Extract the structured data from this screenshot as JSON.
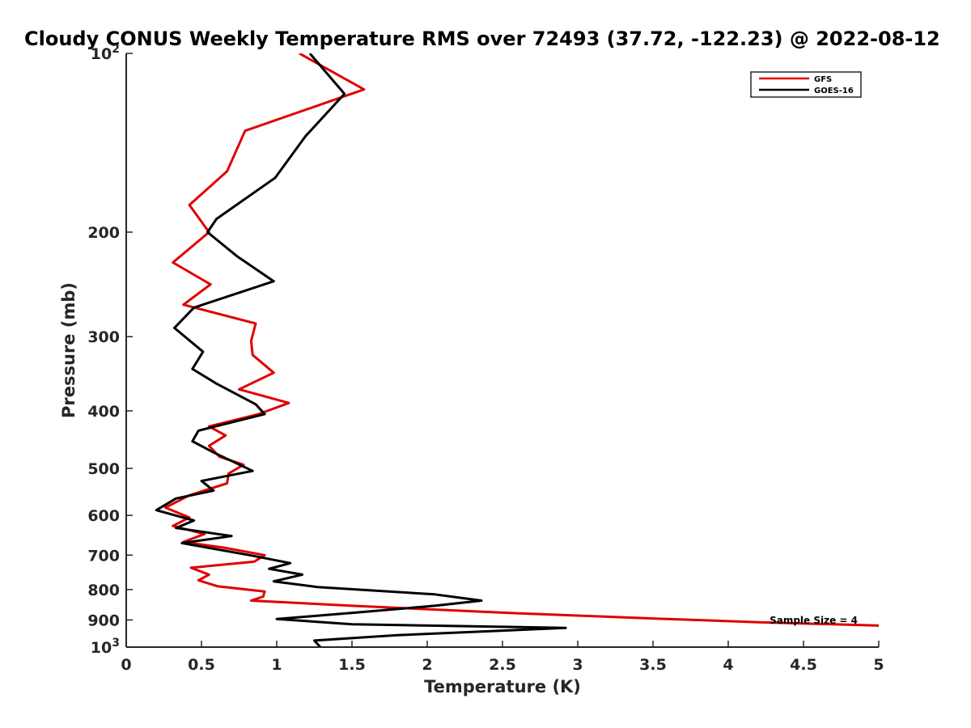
{
  "chart_data": {
    "type": "line",
    "title": "Cloudy CONUS Weekly Temperature RMS over 72493 (37.72, -122.23) @ 2022-08-12",
    "xlabel": "Temperature (K)",
    "ylabel": "Pressure (mb)",
    "xlim": [
      0,
      5
    ],
    "ylim": [
      100,
      1000
    ],
    "y_scale": "log",
    "y_reversed": true,
    "grid": false,
    "legend_placement": "top-right",
    "x_ticks": [
      {
        "value": 0,
        "label": "0"
      },
      {
        "value": 0.5,
        "label": "0.5"
      },
      {
        "value": 1,
        "label": "1"
      },
      {
        "value": 1.5,
        "label": "1.5"
      },
      {
        "value": 2,
        "label": "2"
      },
      {
        "value": 2.5,
        "label": "2.5"
      },
      {
        "value": 3,
        "label": "3"
      },
      {
        "value": 3.5,
        "label": "3.5"
      },
      {
        "value": 4,
        "label": "4"
      },
      {
        "value": 4.5,
        "label": "4.5"
      },
      {
        "value": 5,
        "label": "5"
      }
    ],
    "y_ticks": [
      {
        "value": 100,
        "base": "10",
        "exp": "2"
      },
      {
        "value": 200,
        "label": "200"
      },
      {
        "value": 300,
        "label": "300"
      },
      {
        "value": 400,
        "label": "400"
      },
      {
        "value": 500,
        "label": "500"
      },
      {
        "value": 600,
        "label": "600"
      },
      {
        "value": 700,
        "label": "700"
      },
      {
        "value": 800,
        "label": "800"
      },
      {
        "value": 900,
        "label": "900"
      },
      {
        "value": 1000,
        "base": "10",
        "exp": "3"
      }
    ],
    "series": [
      {
        "name": "GFS",
        "color": "#e00000",
        "points": [
          [
            1.15,
            100
          ],
          [
            1.58,
            115
          ],
          [
            0.79,
            135
          ],
          [
            0.67,
            158
          ],
          [
            0.42,
            180
          ],
          [
            0.55,
            200
          ],
          [
            0.31,
            225
          ],
          [
            0.56,
            245
          ],
          [
            0.38,
            265
          ],
          [
            0.86,
            285
          ],
          [
            0.83,
            305
          ],
          [
            0.84,
            322
          ],
          [
            0.98,
            345
          ],
          [
            0.75,
            368
          ],
          [
            1.08,
            388
          ],
          [
            0.88,
            405
          ],
          [
            0.55,
            425
          ],
          [
            0.66,
            440
          ],
          [
            0.55,
            458
          ],
          [
            0.62,
            478
          ],
          [
            0.78,
            493
          ],
          [
            0.68,
            510
          ],
          [
            0.67,
            530
          ],
          [
            0.42,
            555
          ],
          [
            0.26,
            582
          ],
          [
            0.42,
            605
          ],
          [
            0.31,
            625
          ],
          [
            0.52,
            645
          ],
          [
            0.38,
            665
          ],
          [
            0.65,
            680
          ],
          [
            0.92,
            700
          ],
          [
            0.85,
            718
          ],
          [
            0.43,
            735
          ],
          [
            0.55,
            755
          ],
          [
            0.48,
            772
          ],
          [
            0.61,
            790
          ],
          [
            0.92,
            806
          ],
          [
            0.91,
            822
          ],
          [
            0.83,
            835
          ],
          [
            1.5,
            852
          ],
          [
            2.5,
            875
          ],
          [
            3.5,
            895
          ],
          [
            4.2,
            908
          ],
          [
            5.0,
            920
          ]
        ]
      },
      {
        "name": "GOES-16",
        "color": "#000000",
        "points": [
          [
            1.22,
            100
          ],
          [
            1.45,
            117
          ],
          [
            1.19,
            138
          ],
          [
            0.99,
            162
          ],
          [
            0.6,
            190
          ],
          [
            0.54,
            200
          ],
          [
            0.74,
            220
          ],
          [
            0.98,
            242
          ],
          [
            0.45,
            268
          ],
          [
            0.32,
            290
          ],
          [
            0.51,
            318
          ],
          [
            0.44,
            340
          ],
          [
            0.6,
            360
          ],
          [
            0.86,
            390
          ],
          [
            0.92,
            405
          ],
          [
            0.48,
            432
          ],
          [
            0.44,
            450
          ],
          [
            0.58,
            470
          ],
          [
            0.84,
            505
          ],
          [
            0.5,
            525
          ],
          [
            0.58,
            545
          ],
          [
            0.33,
            562
          ],
          [
            0.2,
            588
          ],
          [
            0.45,
            612
          ],
          [
            0.33,
            630
          ],
          [
            0.7,
            650
          ],
          [
            0.37,
            668
          ],
          [
            0.82,
            700
          ],
          [
            1.09,
            722
          ],
          [
            0.95,
            738
          ],
          [
            1.17,
            755
          ],
          [
            0.98,
            775
          ],
          [
            1.27,
            792
          ],
          [
            2.05,
            815
          ],
          [
            2.36,
            835
          ],
          [
            2.05,
            852
          ],
          [
            1.52,
            875
          ],
          [
            1.0,
            897
          ],
          [
            1.5,
            915
          ],
          [
            2.92,
            928
          ],
          [
            1.8,
            955
          ],
          [
            1.25,
            975
          ],
          [
            1.29,
            1000
          ]
        ]
      }
    ],
    "annotations": [
      {
        "text": "Sample Size = 4"
      }
    ]
  }
}
